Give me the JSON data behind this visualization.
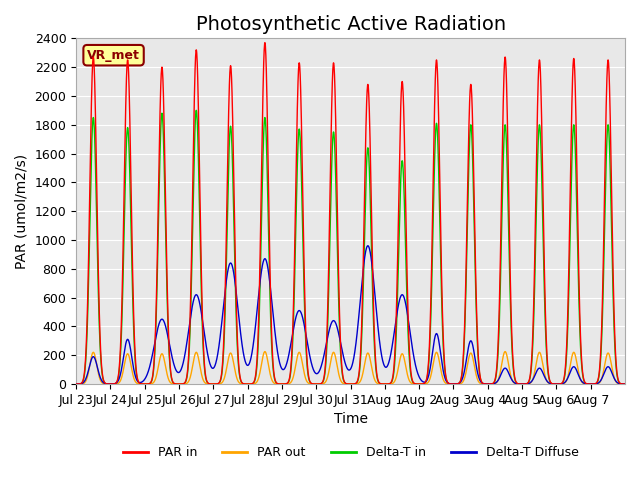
{
  "title": "Photosynthetic Active Radiation",
  "ylabel": "PAR (umol/m2/s)",
  "xlabel": "Time",
  "ylim": [
    0,
    2400
  ],
  "yticks": [
    0,
    200,
    400,
    600,
    800,
    1000,
    1200,
    1400,
    1600,
    1800,
    2000,
    2200,
    2400
  ],
  "xtick_labels": [
    "Jul 23",
    "Jul 24",
    "Jul 25",
    "Jul 26",
    "Jul 27",
    "Jul 28",
    "Jul 29",
    "Jul 30",
    "Jul 31",
    "Aug 1",
    "Aug 2",
    "Aug 3",
    "Aug 4",
    "Aug 5",
    "Aug 6",
    "Aug 7"
  ],
  "colors": {
    "par_in": "#ff0000",
    "par_out": "#ffa500",
    "delta_t_in": "#00cc00",
    "delta_t_diffuse": "#0000cc"
  },
  "background_color": "#e8e8e8",
  "label_box_text": "VR_met",
  "legend": [
    "PAR in",
    "PAR out",
    "Delta-T in",
    "Delta-T Diffuse"
  ],
  "num_days": 16,
  "points_per_day": 144,
  "day_peaks_par_in": [
    2270,
    2250,
    2200,
    2320,
    2210,
    2370,
    2230,
    2230,
    2080,
    2100,
    2250,
    2080,
    2270,
    2250,
    2260,
    2250
  ],
  "day_peaks_par_out": [
    220,
    210,
    210,
    220,
    215,
    225,
    220,
    220,
    215,
    210,
    220,
    215,
    225,
    220,
    220,
    215
  ],
  "day_peaks_delta_t_in": [
    1850,
    1780,
    1880,
    1900,
    1790,
    1850,
    1770,
    1750,
    1640,
    1550,
    1810,
    1800,
    1800,
    1800,
    1800,
    1800
  ],
  "day_peaks_delta_t_diffuse": [
    190,
    310,
    450,
    620,
    840,
    870,
    510,
    440,
    960,
    620,
    350,
    300,
    110,
    110,
    120,
    120
  ],
  "title_fontsize": 14,
  "axis_fontsize": 10,
  "tick_fontsize": 9
}
